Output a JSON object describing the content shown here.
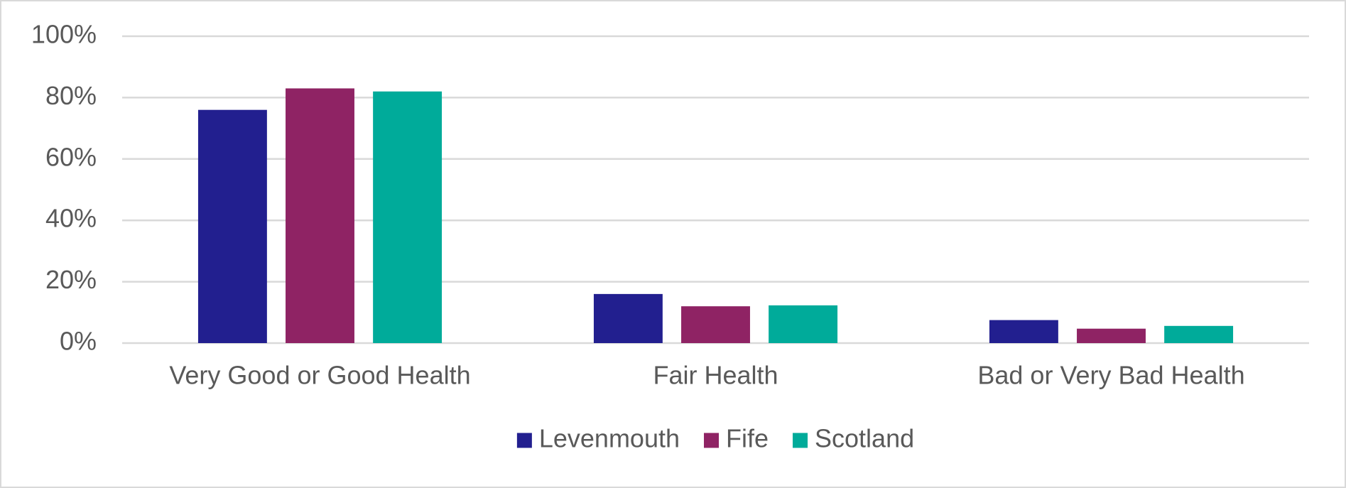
{
  "chart_data": {
    "type": "bar",
    "categories": [
      "Very Good or Good Health",
      "Fair Health",
      "Bad or Very Bad Health"
    ],
    "series": [
      {
        "name": "Levenmouth",
        "color": "#221f8f",
        "values": [
          76,
          16,
          7.5
        ]
      },
      {
        "name": "Fife",
        "color": "#8f2364",
        "values": [
          83,
          12,
          4.7
        ]
      },
      {
        "name": "Scotland",
        "color": "#00ab9a",
        "values": [
          82,
          12.3,
          5.6
        ]
      }
    ],
    "ylim": [
      0,
      100
    ],
    "yticks": [
      {
        "value": 0,
        "label": "0%"
      },
      {
        "value": 20,
        "label": "20%"
      },
      {
        "value": 40,
        "label": "40%"
      },
      {
        "value": 60,
        "label": "60%"
      },
      {
        "value": 80,
        "label": "80%"
      },
      {
        "value": 100,
        "label": "100%"
      }
    ],
    "grid": true,
    "legend": "bottom"
  }
}
